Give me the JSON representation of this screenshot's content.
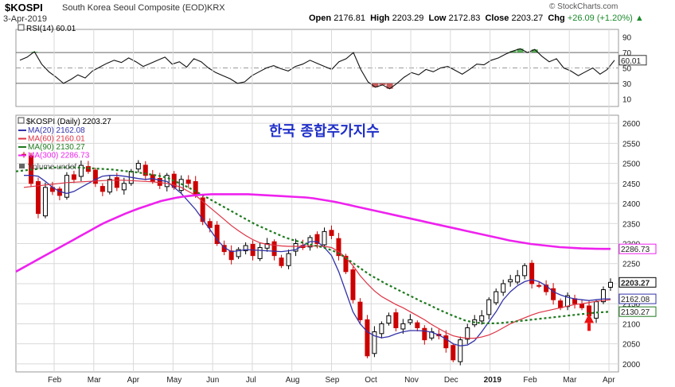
{
  "header": {
    "ticker": "$KOSPI",
    "description": "South Korea Seoul Composite (EOD)",
    "exchange": "KRX",
    "date": "3-Apr-2019",
    "watermark": "© StockCharts.com",
    "open_label": "Open",
    "open": "2176.81",
    "high_label": "High",
    "high": "2203.29",
    "low_label": "Low",
    "low": "2172.83",
    "close_label": "Close",
    "close": "2203.27",
    "chg_label": "Chg",
    "chg": "+26.09 (+1.20%)",
    "chg_arrow": "▲"
  },
  "annotation_text": "한국 종합주가지수",
  "colors": {
    "up": "#000000",
    "down": "#cc0000",
    "ma20": "#3333aa",
    "ma60": "#dd3344",
    "ma90": "#1e7a1e",
    "ma300": "#ee22ee",
    "arrow": "#ee1111",
    "grid": "#d9d9d9"
  },
  "chart_data": [
    {
      "type": "line",
      "title": "RSI(14) 60.01",
      "indicator": "RSI(14)",
      "last_value": 60.01,
      "last_value_label": "60.01",
      "ylim": [
        0,
        100
      ],
      "yticks": [
        10,
        30,
        50,
        70,
        90
      ],
      "reference_lines": [
        30,
        50,
        70
      ],
      "values": [
        60,
        64,
        71,
        55,
        45,
        38,
        30,
        35,
        41,
        37,
        46,
        51,
        56,
        60,
        57,
        63,
        58,
        52,
        56,
        60,
        64,
        55,
        58,
        51,
        62,
        58,
        50,
        44,
        40,
        36,
        30,
        32,
        40,
        45,
        50,
        53,
        49,
        46,
        52,
        55,
        60,
        56,
        52,
        48,
        58,
        62,
        70,
        48,
        32,
        25,
        28,
        23,
        30,
        38,
        44,
        41,
        48,
        45,
        50,
        52,
        47,
        42,
        48,
        55,
        54,
        60,
        63,
        68,
        72,
        75,
        70,
        74,
        65,
        58,
        62,
        50,
        46,
        40,
        45,
        50,
        42,
        48,
        60
      ]
    },
    {
      "type": "candlestick",
      "title": "$KOSPI (Daily) 2203.27",
      "ylim": [
        1980,
        2620
      ],
      "yticks": [
        2000,
        2050,
        2100,
        2150,
        2200,
        2250,
        2300,
        2350,
        2400,
        2450,
        2500,
        2550,
        2600
      ],
      "x_labels": [
        "Feb",
        "Mar",
        "Apr",
        "May",
        "Jun",
        "Jul",
        "Aug",
        "Sep",
        "Oct",
        "Nov",
        "Dec",
        "2019",
        "Feb",
        "Mar",
        "Apr"
      ],
      "closes": [
        2520,
        2450,
        2375,
        2440,
        2430,
        2420,
        2470,
        2460,
        2495,
        2480,
        2450,
        2430,
        2460,
        2440,
        2450,
        2480,
        2500,
        2470,
        2455,
        2445,
        2470,
        2440,
        2460,
        2450,
        2420,
        2355,
        2340,
        2300,
        2280,
        2260,
        2285,
        2295,
        2270,
        2290,
        2300,
        2270,
        2245,
        2275,
        2300,
        2290,
        2315,
        2300,
        2330,
        2320,
        2270,
        2230,
        2160,
        2110,
        2020,
        2080,
        2100,
        2120,
        2090,
        2100,
        2110,
        2090,
        2060,
        2080,
        2070,
        2040,
        2010,
        2060,
        2090,
        2110,
        2120,
        2160,
        2180,
        2200,
        2210,
        2220,
        2245,
        2200,
        2195,
        2180,
        2160,
        2140,
        2170,
        2150,
        2140,
        2120,
        2155,
        2185,
        2203.27
      ],
      "series": [
        {
          "name": "MA(20)",
          "label": "MA(20) 2162.08",
          "last_value": 2162.08,
          "last_label": "2162.08",
          "values": [
            2470,
            2470,
            2468,
            2455,
            2440,
            2430,
            2425,
            2430,
            2440,
            2450,
            2460,
            2468,
            2470,
            2470,
            2468,
            2465,
            2462,
            2460,
            2462,
            2458,
            2455,
            2440,
            2425,
            2405,
            2385,
            2360,
            2335,
            2310,
            2290,
            2280,
            2282,
            2285,
            2284,
            2283,
            2282,
            2281,
            2280,
            2282,
            2285,
            2295,
            2305,
            2305,
            2290,
            2270,
            2230,
            2180,
            2130,
            2100,
            2080,
            2070,
            2065,
            2068,
            2075,
            2080,
            2083,
            2083,
            2082,
            2079,
            2072,
            2062,
            2050,
            2045,
            2047,
            2058,
            2080,
            2105,
            2130,
            2160,
            2180,
            2195,
            2205,
            2210,
            2205,
            2195,
            2180,
            2172,
            2166,
            2162,
            2160,
            2158,
            2160,
            2162,
            2162.08
          ]
        },
        {
          "name": "MA(60)",
          "label": "MA(60) 2160.01",
          "last_value": 2160.01,
          "last_label": "2160.01",
          "values": [
            2440,
            2442,
            2444,
            2446,
            2448,
            2450,
            2452,
            2453,
            2454,
            2455,
            2456,
            2457,
            2458,
            2458,
            2458,
            2457,
            2456,
            2455,
            2454,
            2452,
            2450,
            2446,
            2440,
            2430,
            2420,
            2405,
            2390,
            2375,
            2360,
            2345,
            2332,
            2320,
            2310,
            2302,
            2298,
            2296,
            2294,
            2293,
            2293,
            2293,
            2294,
            2294,
            2293,
            2290,
            2280,
            2265,
            2245,
            2220,
            2200,
            2182,
            2168,
            2158,
            2148,
            2140,
            2130,
            2120,
            2110,
            2098,
            2088,
            2078,
            2070,
            2066,
            2064,
            2064,
            2067,
            2072,
            2080,
            2090,
            2100,
            2108,
            2115,
            2122,
            2128,
            2132,
            2136,
            2140,
            2144,
            2148,
            2150,
            2153,
            2156,
            2158,
            2160.01
          ]
        },
        {
          "name": "MA(90)",
          "label": "MA(90) 2130.27",
          "last_value": 2130.27,
          "last_label": "2130.27",
          "values": [
            2480,
            2482,
            2484,
            2486,
            2488,
            2489,
            2490,
            2490,
            2490,
            2489,
            2488,
            2487,
            2486,
            2485,
            2483,
            2481,
            2479,
            2477,
            2474,
            2471,
            2468,
            2463,
            2455,
            2447,
            2438,
            2428,
            2418,
            2408,
            2398,
            2388,
            2378,
            2368,
            2358,
            2348,
            2340,
            2332,
            2324,
            2316,
            2310,
            2305,
            2300,
            2296,
            2292,
            2287,
            2280,
            2270,
            2258,
            2245,
            2232,
            2220,
            2210,
            2200,
            2191,
            2182,
            2173,
            2164,
            2155,
            2147,
            2138,
            2130,
            2122,
            2115,
            2108,
            2104,
            2102,
            2101,
            2101,
            2102,
            2104,
            2106,
            2108,
            2110,
            2112,
            2114,
            2116,
            2118,
            2120,
            2122,
            2124,
            2126,
            2128,
            2129,
            2130.27
          ]
        },
        {
          "name": "MA(300)",
          "label": "MA(300) 2286.73",
          "last_value": 2286.73,
          "last_label": "2286.73",
          "values": [
            2230,
            2240,
            2250,
            2260,
            2270,
            2280,
            2290,
            2300,
            2310,
            2320,
            2330,
            2340,
            2350,
            2358,
            2366,
            2374,
            2381,
            2388,
            2394,
            2400,
            2406,
            2410,
            2414,
            2417,
            2419,
            2421,
            2422,
            2423,
            2423,
            2423,
            2423,
            2423,
            2423,
            2422,
            2421,
            2420,
            2419,
            2418,
            2417,
            2416,
            2415,
            2413,
            2410,
            2407,
            2404,
            2400,
            2396,
            2392,
            2388,
            2384,
            2380,
            2376,
            2372,
            2368,
            2364,
            2360,
            2356,
            2352,
            2348,
            2344,
            2340,
            2336,
            2332,
            2328,
            2324,
            2320,
            2316,
            2312,
            2308,
            2305,
            2302,
            2299,
            2297,
            2295,
            2293,
            2291,
            2290,
            2289,
            2288,
            2287.5,
            2287,
            2286.8,
            2286.73
          ]
        }
      ],
      "volume_label": "Volume undef",
      "annotations": [
        {
          "type": "arrow-up",
          "x_index": 79,
          "y_value": 2110
        }
      ]
    }
  ]
}
